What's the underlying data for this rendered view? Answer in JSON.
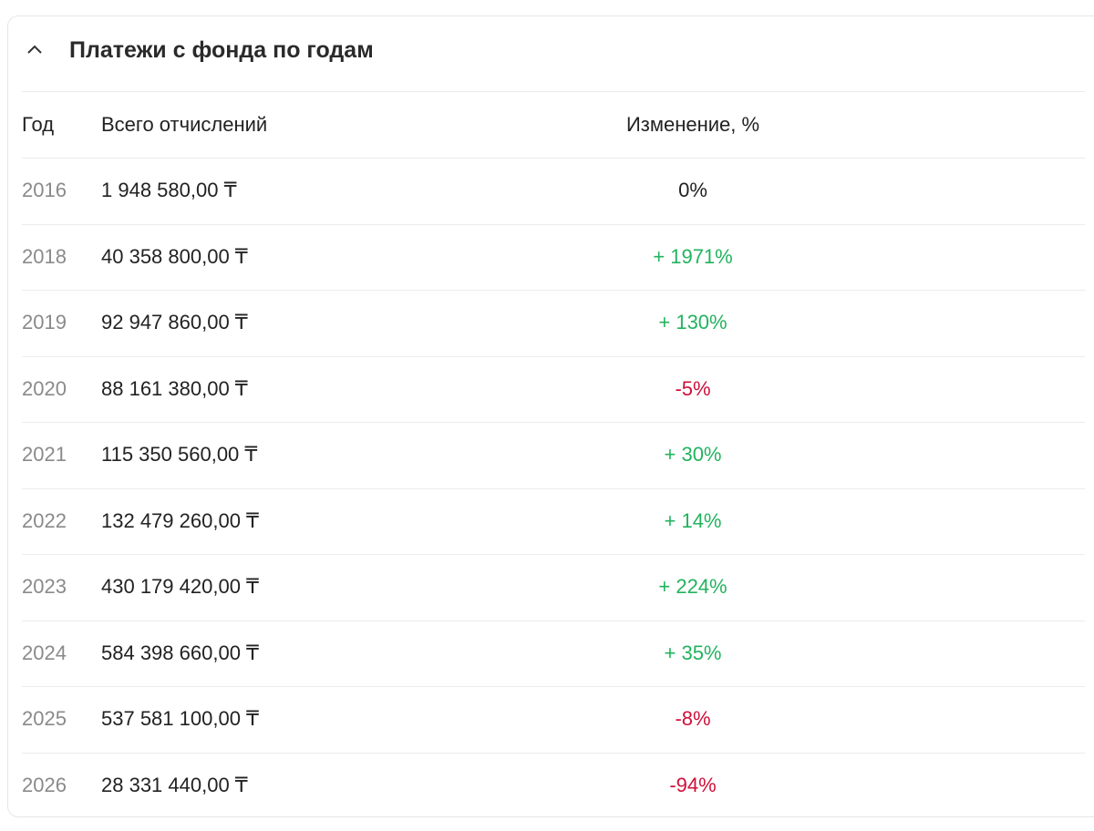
{
  "header": {
    "title": "Платежи с фонда по годам"
  },
  "table": {
    "columns": [
      "Год",
      "Всего отчислений",
      "Изменение, %"
    ],
    "rows": [
      [
        "2016",
        "1 948 580,00 ₸",
        "0%"
      ],
      [
        "2018",
        "40 358 800,00 ₸",
        "+ 1971%"
      ],
      [
        "2019",
        "92 947 860,00 ₸",
        "+ 130%"
      ],
      [
        "2020",
        "88 161 380,00 ₸",
        "-5%"
      ],
      [
        "2021",
        "115 350 560,00 ₸",
        "+ 30%"
      ],
      [
        "2022",
        "132 479 260,00 ₸",
        "+ 14%"
      ],
      [
        "2023",
        "430 179 420,00 ₸",
        "+ 224%"
      ],
      [
        "2024",
        "584 398 660,00 ₸",
        "+ 35%"
      ],
      [
        "2025",
        "537 581 100,00 ₸",
        "-8%"
      ],
      [
        "2026",
        "28 331 440,00 ₸",
        "-94%"
      ]
    ]
  }
}
